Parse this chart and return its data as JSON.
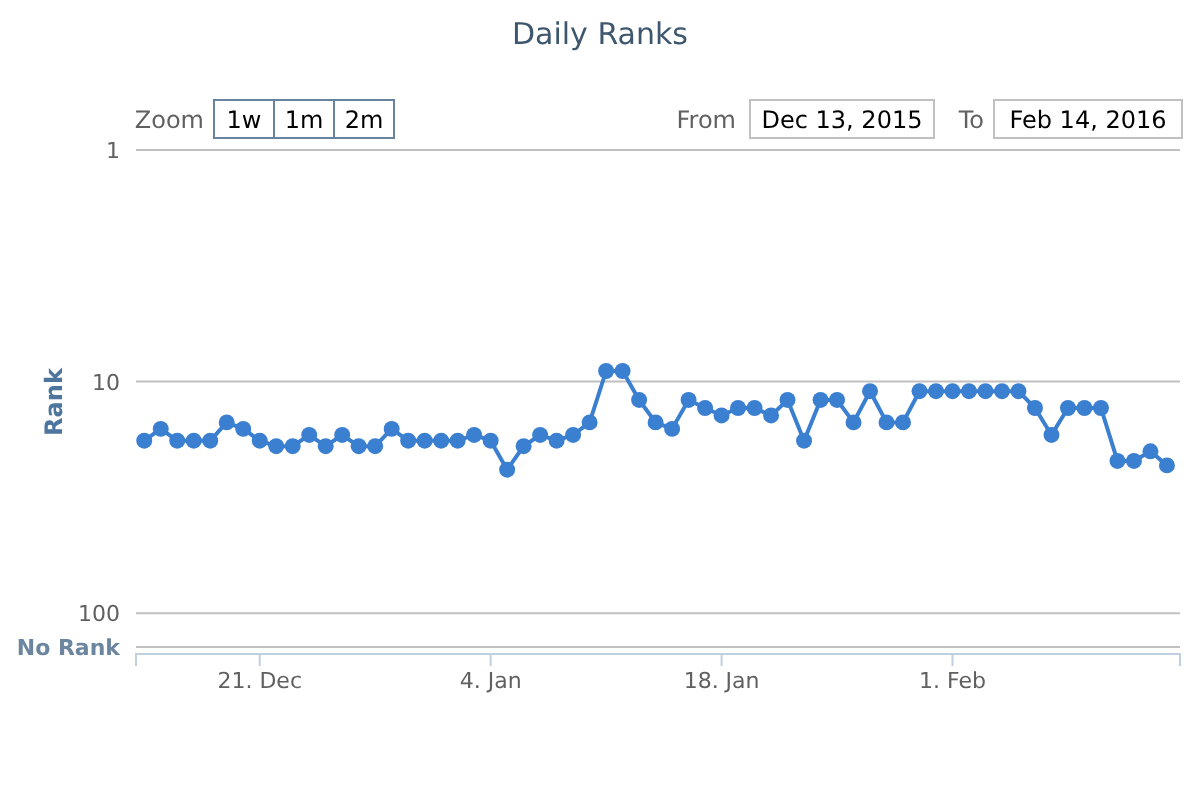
{
  "chart_data": {
    "type": "line",
    "title": "Daily Ranks",
    "ylabel": "Rank",
    "annotations": [
      "Zoom",
      "1w",
      "1m",
      "2m",
      "From",
      "Dec 13, 2015",
      "To",
      "Feb 14, 2016"
    ],
    "x": [
      "2015-12-14",
      "2015-12-15",
      "2015-12-16",
      "2015-12-17",
      "2015-12-18",
      "2015-12-19",
      "2015-12-20",
      "2015-12-21",
      "2015-12-22",
      "2015-12-23",
      "2015-12-24",
      "2015-12-25",
      "2015-12-26",
      "2015-12-27",
      "2015-12-28",
      "2015-12-29",
      "2015-12-30",
      "2015-12-31",
      "2016-01-01",
      "2016-01-02",
      "2016-01-03",
      "2016-01-04",
      "2016-01-05",
      "2016-01-06",
      "2016-01-07",
      "2016-01-08",
      "2016-01-09",
      "2016-01-10",
      "2016-01-11",
      "2016-01-12",
      "2016-01-13",
      "2016-01-14",
      "2016-01-15",
      "2016-01-16",
      "2016-01-17",
      "2016-01-18",
      "2016-01-19",
      "2016-01-20",
      "2016-01-21",
      "2016-01-22",
      "2016-01-23",
      "2016-01-24",
      "2016-01-25",
      "2016-01-26",
      "2016-01-27",
      "2016-01-28",
      "2016-01-29",
      "2016-01-30",
      "2016-01-31",
      "2016-02-01",
      "2016-02-02",
      "2016-02-03",
      "2016-02-04",
      "2016-02-05",
      "2016-02-06",
      "2016-02-07",
      "2016-02-08",
      "2016-02-09",
      "2016-02-10",
      "2016-02-11",
      "2016-02-12",
      "2016-02-13",
      "2016-02-14"
    ],
    "series": [
      {
        "color": "#3a7fd0",
        "values": [
          18,
          16,
          18,
          18,
          18,
          15,
          16,
          18,
          19,
          19,
          17,
          19,
          17,
          19,
          19,
          16,
          18,
          18,
          18,
          18,
          17,
          18,
          24,
          19,
          17,
          18,
          17,
          15,
          9,
          9,
          12,
          15,
          16,
          12,
          13,
          14,
          13,
          13,
          14,
          12,
          18,
          12,
          12,
          15,
          11,
          15,
          15,
          11,
          11,
          11,
          11,
          11,
          11,
          11,
          13,
          17,
          13,
          13,
          13,
          22,
          22,
          20,
          23
        ]
      }
    ],
    "log": "y",
    "ylim": [
      150,
      1
    ],
    "yticks": [
      1,
      10,
      100,
      {
        "value": 140,
        "label": "No Rank"
      }
    ],
    "xlim": [
      "2015-12-13T12:00",
      "2016-02-14T19:00"
    ],
    "xticks": [
      {
        "value": "2015-12-21",
        "label": "21. Dec"
      },
      {
        "value": "2016-01-04",
        "label": "4. Jan"
      },
      {
        "value": "2016-01-18",
        "label": "18. Jan"
      },
      {
        "value": "2016-02-01",
        "label": "1. Feb"
      }
    ],
    "grid": "y",
    "marker": "circle",
    "line_style": "solid"
  }
}
